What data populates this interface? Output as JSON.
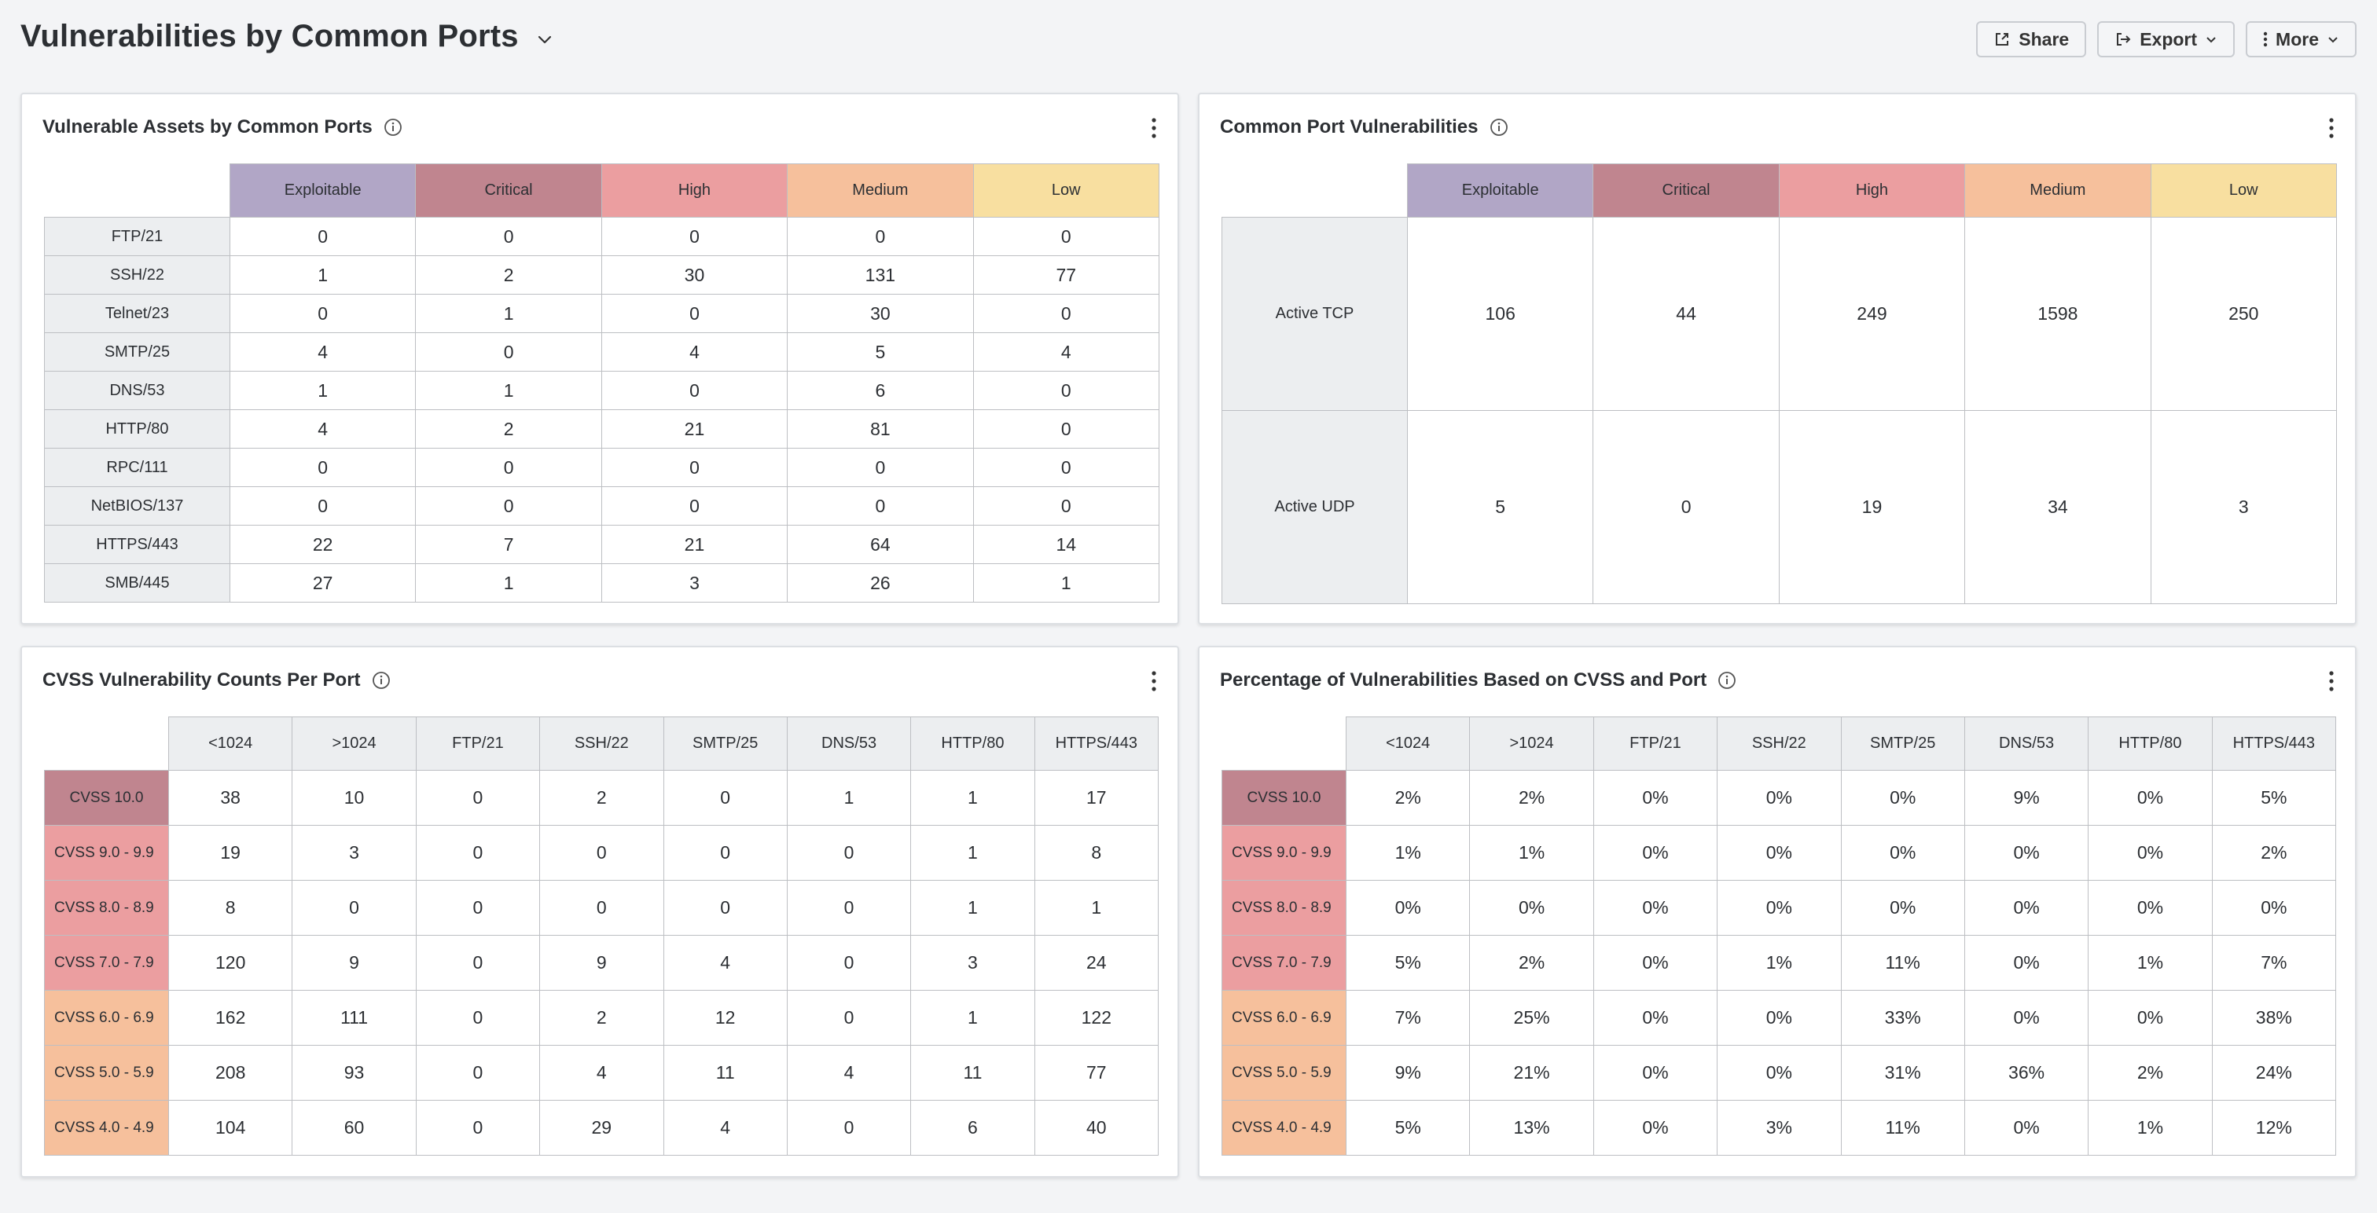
{
  "header": {
    "title": "Vulnerabilities by Common Ports",
    "share_label": "Share",
    "export_label": "Export",
    "more_label": "More"
  },
  "colors": {
    "exploitable": "#b1a6c6",
    "critical": "#c0858f",
    "high": "#eb9ea0",
    "medium": "#f6c09c",
    "low": "#f8dfa0"
  },
  "panel1": {
    "title": "Vulnerable Assets by Common Ports",
    "columns": [
      "Exploitable",
      "Critical",
      "High",
      "Medium",
      "Low"
    ],
    "rows": [
      {
        "label": "FTP/21",
        "values": [
          "0",
          "0",
          "0",
          "0",
          "0"
        ]
      },
      {
        "label": "SSH/22",
        "values": [
          "1",
          "2",
          "30",
          "131",
          "77"
        ]
      },
      {
        "label": "Telnet/23",
        "values": [
          "0",
          "1",
          "0",
          "30",
          "0"
        ]
      },
      {
        "label": "SMTP/25",
        "values": [
          "4",
          "0",
          "4",
          "5",
          "4"
        ]
      },
      {
        "label": "DNS/53",
        "values": [
          "1",
          "1",
          "0",
          "6",
          "0"
        ]
      },
      {
        "label": "HTTP/80",
        "values": [
          "4",
          "2",
          "21",
          "81",
          "0"
        ]
      },
      {
        "label": "RPC/111",
        "values": [
          "0",
          "0",
          "0",
          "0",
          "0"
        ]
      },
      {
        "label": "NetBIOS/137",
        "values": [
          "0",
          "0",
          "0",
          "0",
          "0"
        ]
      },
      {
        "label": "HTTPS/443",
        "values": [
          "22",
          "7",
          "21",
          "64",
          "14"
        ]
      },
      {
        "label": "SMB/445",
        "values": [
          "27",
          "1",
          "3",
          "26",
          "1"
        ]
      }
    ]
  },
  "panel2": {
    "title": "Common Port Vulnerabilities",
    "columns": [
      "Exploitable",
      "Critical",
      "High",
      "Medium",
      "Low"
    ],
    "rows": [
      {
        "label": "Active TCP",
        "values": [
          "106",
          "44",
          "249",
          "1598",
          "250"
        ]
      },
      {
        "label": "Active UDP",
        "values": [
          "5",
          "0",
          "19",
          "34",
          "3"
        ]
      }
    ]
  },
  "panel3": {
    "title": "CVSS Vulnerability Counts Per Port",
    "columns": [
      "<1024",
      ">1024",
      "FTP/21",
      "SSH/22",
      "SMTP/25",
      "DNS/53",
      "HTTP/80",
      "HTTPS/443"
    ],
    "rows": [
      {
        "label": "CVSS 10.0",
        "values": [
          "38",
          "10",
          "0",
          "2",
          "0",
          "1",
          "1",
          "17"
        ]
      },
      {
        "label": "CVSS 9.0 - 9.9",
        "values": [
          "19",
          "3",
          "0",
          "0",
          "0",
          "0",
          "1",
          "8"
        ]
      },
      {
        "label": "CVSS 8.0 - 8.9",
        "values": [
          "8",
          "0",
          "0",
          "0",
          "0",
          "0",
          "1",
          "1"
        ]
      },
      {
        "label": "CVSS 7.0 - 7.9",
        "values": [
          "120",
          "9",
          "0",
          "9",
          "4",
          "0",
          "3",
          "24"
        ]
      },
      {
        "label": "CVSS 6.0 - 6.9",
        "values": [
          "162",
          "111",
          "0",
          "2",
          "12",
          "0",
          "1",
          "122"
        ]
      },
      {
        "label": "CVSS 5.0 - 5.9",
        "values": [
          "208",
          "93",
          "0",
          "4",
          "11",
          "4",
          "11",
          "77"
        ]
      },
      {
        "label": "CVSS 4.0 - 4.9",
        "values": [
          "104",
          "60",
          "0",
          "29",
          "4",
          "0",
          "6",
          "40"
        ]
      }
    ]
  },
  "panel4": {
    "title": "Percentage of Vulnerabilities Based on CVSS and Port",
    "columns": [
      "<1024",
      ">1024",
      "FTP/21",
      "SSH/22",
      "SMTP/25",
      "DNS/53",
      "HTTP/80",
      "HTTPS/443"
    ],
    "rows": [
      {
        "label": "CVSS 10.0",
        "values": [
          "2%",
          "2%",
          "0%",
          "0%",
          "0%",
          "9%",
          "0%",
          "5%"
        ]
      },
      {
        "label": "CVSS 9.0 - 9.9",
        "values": [
          "1%",
          "1%",
          "0%",
          "0%",
          "0%",
          "0%",
          "0%",
          "2%"
        ]
      },
      {
        "label": "CVSS 8.0 - 8.9",
        "values": [
          "0%",
          "0%",
          "0%",
          "0%",
          "0%",
          "0%",
          "0%",
          "0%"
        ]
      },
      {
        "label": "CVSS 7.0 - 7.9",
        "values": [
          "5%",
          "2%",
          "0%",
          "1%",
          "11%",
          "0%",
          "1%",
          "7%"
        ]
      },
      {
        "label": "CVSS 6.0 - 6.9",
        "values": [
          "7%",
          "25%",
          "0%",
          "0%",
          "33%",
          "0%",
          "0%",
          "38%"
        ]
      },
      {
        "label": "CVSS 5.0 - 5.9",
        "values": [
          "9%",
          "21%",
          "0%",
          "0%",
          "31%",
          "36%",
          "2%",
          "24%"
        ]
      },
      {
        "label": "CVSS 4.0 - 4.9",
        "values": [
          "5%",
          "13%",
          "0%",
          "3%",
          "11%",
          "0%",
          "1%",
          "12%"
        ]
      }
    ]
  }
}
